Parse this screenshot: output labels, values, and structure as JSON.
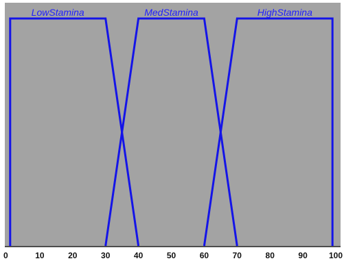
{
  "chart_data": {
    "type": "line",
    "xlim": [
      0,
      100
    ],
    "ylim": [
      0,
      1
    ],
    "grid": false,
    "legend": "none",
    "colors": {
      "plot_background": "#a3a3a3",
      "series": "#1414e8",
      "label": "#1f1fff",
      "axis": "#000000",
      "page": "#ffffff"
    },
    "x_ticks": [
      0,
      10,
      20,
      30,
      40,
      50,
      60,
      70,
      80,
      90,
      100
    ],
    "x_tick_labels": [
      "0",
      "10",
      "20",
      "30",
      "40",
      "50",
      "60",
      "70",
      "80",
      "90",
      "100"
    ],
    "series": [
      {
        "name": "LowStamina",
        "points": [
          [
            1,
            0
          ],
          [
            1,
            1
          ],
          [
            30,
            1
          ],
          [
            40,
            0
          ]
        ]
      },
      {
        "name": "MedStamina",
        "points": [
          [
            30,
            0
          ],
          [
            40,
            1
          ],
          [
            60,
            1
          ],
          [
            70,
            0
          ]
        ]
      },
      {
        "name": "HighStamina",
        "points": [
          [
            60,
            0
          ],
          [
            70,
            1
          ],
          [
            99,
            1
          ],
          [
            99,
            0
          ]
        ]
      }
    ]
  }
}
